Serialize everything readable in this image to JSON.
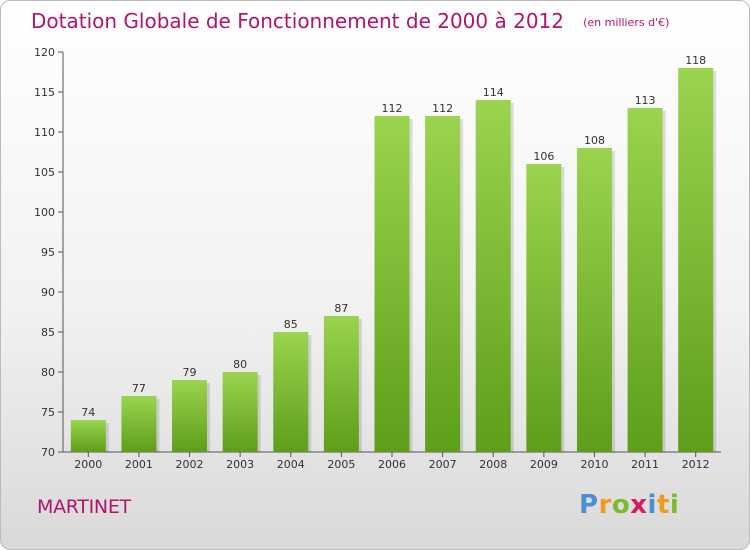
{
  "chart_data": {
    "type": "bar",
    "title": "Dotation Globale de Fonctionnement de 2000 à 2012",
    "subtitle": "(en milliers d'€)",
    "categories": [
      "2000",
      "2001",
      "2002",
      "2003",
      "2004",
      "2005",
      "2006",
      "2007",
      "2008",
      "2009",
      "2010",
      "2011",
      "2012"
    ],
    "values": [
      74,
      77,
      79,
      80,
      85,
      87,
      112,
      112,
      114,
      106,
      108,
      113,
      118
    ],
    "ylim": [
      70,
      120
    ],
    "yticks": [
      70,
      75,
      80,
      85,
      90,
      95,
      100,
      105,
      110,
      115,
      120
    ],
    "xlabel": "",
    "ylabel": "",
    "grid": false,
    "bar_color": "#7fc232",
    "bar_color_light": "#9bd44e",
    "bar_color_dark": "#5e9e1a"
  },
  "commune": "MARTINET",
  "logo": {
    "letters": [
      "P",
      "r",
      "o",
      "x",
      "i",
      "t",
      "i"
    ],
    "colors": [
      "#4a8fd4",
      "#f29a1e",
      "#7dbb2e",
      "#d81b60",
      "#4a8fd4",
      "#f29a1e",
      "#7dbb2e"
    ]
  },
  "colors": {
    "title": "#b0156e",
    "axis": "#555555"
  }
}
